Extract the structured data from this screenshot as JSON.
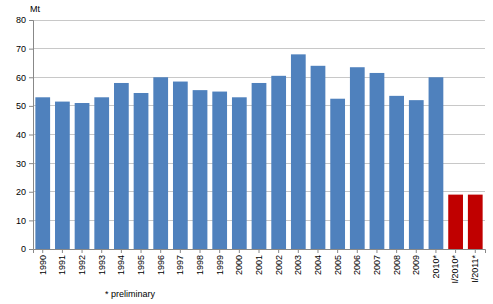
{
  "chart_data": {
    "type": "bar",
    "y_label": "Mt",
    "annotations": [
      "* preliminary"
    ],
    "categories": [
      "1990",
      "1991",
      "1992",
      "1993",
      "1994",
      "1995",
      "1996",
      "1997",
      "1998",
      "1999",
      "2000",
      "2001",
      "2002",
      "2003",
      "2004",
      "2005",
      "2006",
      "2007",
      "2008",
      "2009",
      "2010*",
      "I/2010*",
      "I/2011*"
    ],
    "values": [
      53,
      51.5,
      51,
      53,
      58,
      54.5,
      60,
      58.5,
      55.5,
      55,
      53,
      58,
      60.5,
      68,
      64,
      52.5,
      63.5,
      61.5,
      53.5,
      52,
      60,
      19,
      19
    ],
    "colors": [
      "#4f81bd",
      "#4f81bd",
      "#4f81bd",
      "#4f81bd",
      "#4f81bd",
      "#4f81bd",
      "#4f81bd",
      "#4f81bd",
      "#4f81bd",
      "#4f81bd",
      "#4f81bd",
      "#4f81bd",
      "#4f81bd",
      "#4f81bd",
      "#4f81bd",
      "#4f81bd",
      "#4f81bd",
      "#4f81bd",
      "#4f81bd",
      "#4f81bd",
      "#4f81bd",
      "#c00000",
      "#c00000"
    ],
    "ylim": [
      0,
      80
    ],
    "yticks": [
      0,
      10,
      20,
      30,
      40,
      50,
      60,
      70,
      80
    ],
    "grid": true
  }
}
